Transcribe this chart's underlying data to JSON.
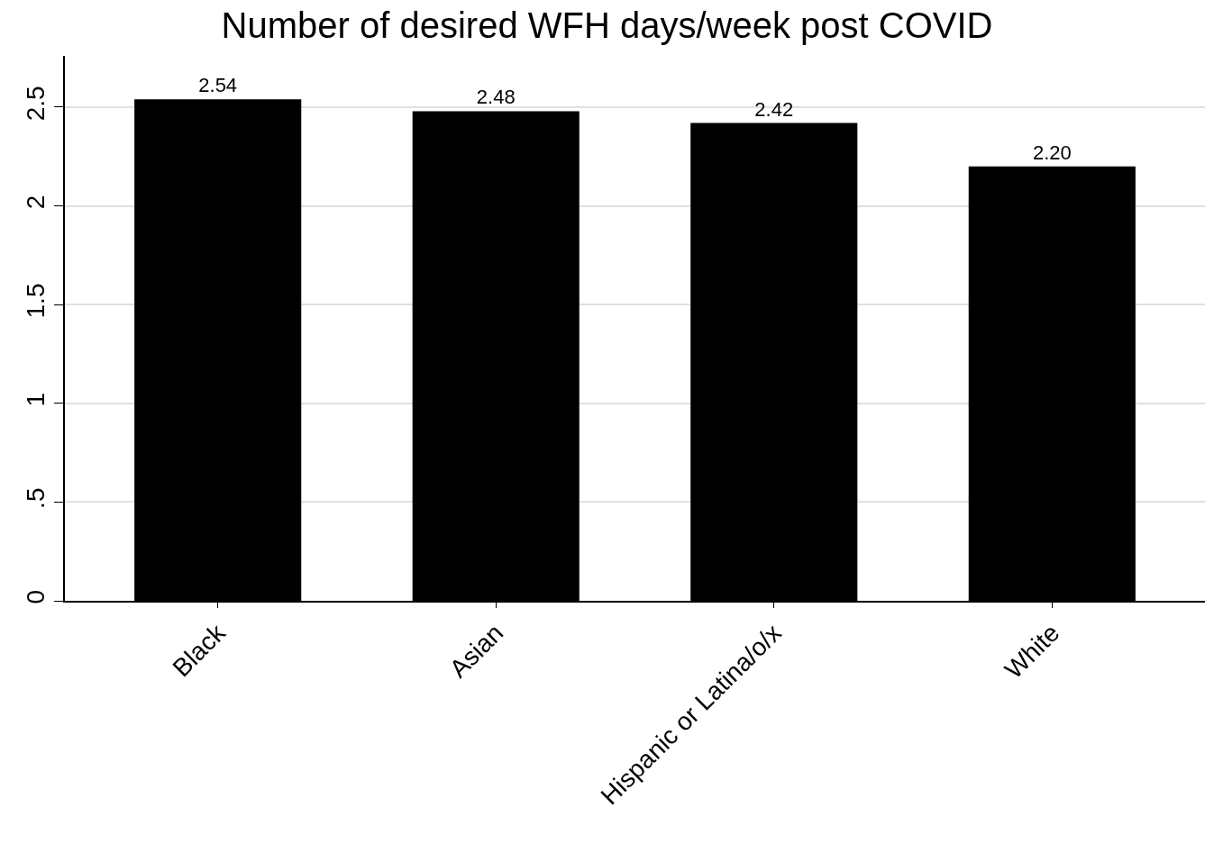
{
  "chart_data": {
    "type": "bar",
    "title": "Number of desired WFH days/week post COVID",
    "categories": [
      "Black",
      "Asian",
      "Hispanic or Latina/o/x",
      "White"
    ],
    "values": [
      2.54,
      2.48,
      2.42,
      2.2
    ],
    "value_labels": [
      "2.54",
      "2.48",
      "2.42",
      "2.20"
    ],
    "color": "#000000",
    "ylim": [
      0,
      2.76
    ],
    "yticks": [
      0,
      {
        "value": 0.5,
        "label": ".5"
      },
      1,
      {
        "value": 1.5,
        "label": "1.5"
      },
      2,
      {
        "value": 2.5,
        "label": "2.5"
      }
    ],
    "grid": "y"
  }
}
